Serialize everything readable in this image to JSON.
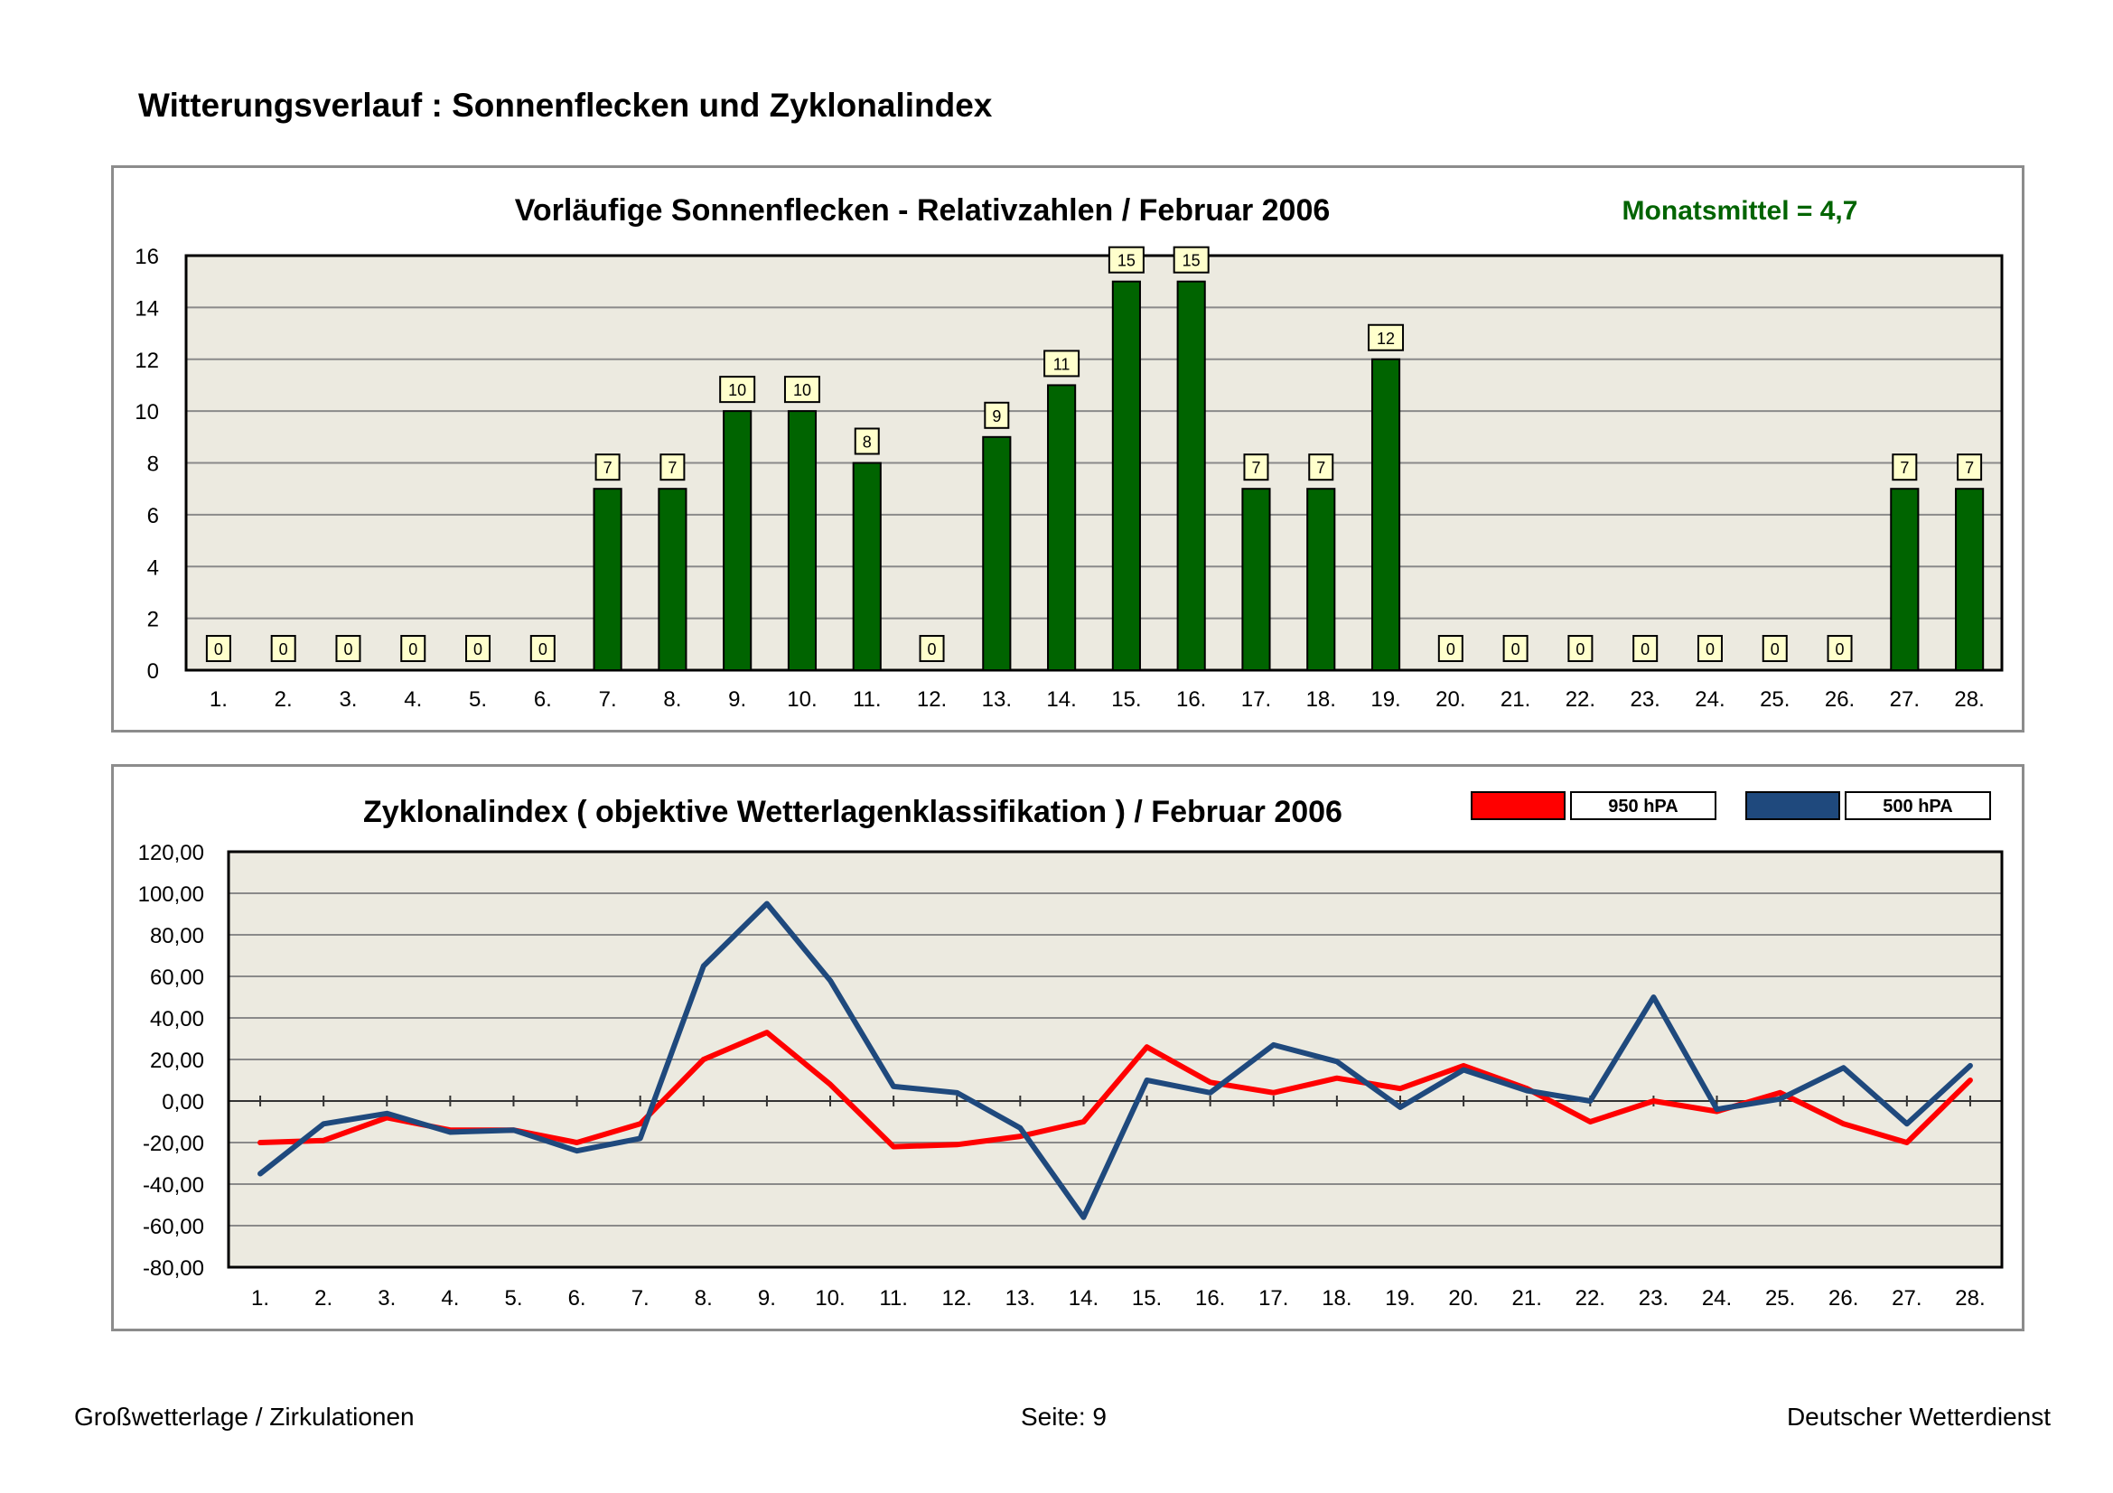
{
  "page": {
    "title": "Witterungsverlauf : Sonnenflecken und Zyklonalindex",
    "footer_left": "Großwetterlage / Zirkulationen",
    "footer_center": "Seite: 9",
    "footer_right": "Deutscher Wetterdienst"
  },
  "colors": {
    "plot_bg": "#eceae0",
    "grid": "#8a8a8a",
    "bar": "#006400",
    "bar_stroke": "#000000",
    "label_bg": "#ffffcc",
    "line_950": "#ff0000",
    "line_500": "#1f497d",
    "mean_text": "#006400"
  },
  "chart_data": [
    {
      "type": "bar",
      "title": "Vorläufige Sonnenflecken - Relativzahlen  /   Februar 2006",
      "annotation": "Monatsmittel = 4,7",
      "categories": [
        "1.",
        "2.",
        "3.",
        "4.",
        "5.",
        "6.",
        "7.",
        "8.",
        "9.",
        "10.",
        "11.",
        "12.",
        "13.",
        "14.",
        "15.",
        "16.",
        "17.",
        "18.",
        "19.",
        "20.",
        "21.",
        "22.",
        "23.",
        "24.",
        "25.",
        "26.",
        "27.",
        "28."
      ],
      "values": [
        0,
        0,
        0,
        0,
        0,
        0,
        7,
        7,
        10,
        10,
        8,
        0,
        9,
        11,
        15,
        15,
        7,
        7,
        12,
        0,
        0,
        0,
        0,
        0,
        0,
        0,
        7,
        7
      ],
      "ylim": [
        0,
        16
      ],
      "yticks": [
        "0",
        "2",
        "4",
        "6",
        "8",
        "10",
        "12",
        "14",
        "16"
      ],
      "grid": true,
      "data_labels": true,
      "xlabel": "",
      "ylabel": ""
    },
    {
      "type": "line",
      "title": "Zyklonalindex  ( objektive Wetterlagenklassifikation )  /  Februar 2006",
      "categories": [
        "1.",
        "2.",
        "3.",
        "4.",
        "5.",
        "6.",
        "7.",
        "8.",
        "9.",
        "10.",
        "11.",
        "12.",
        "13.",
        "14.",
        "15.",
        "16.",
        "17.",
        "18.",
        "19.",
        "20.",
        "21.",
        "22.",
        "23.",
        "24.",
        "25.",
        "26.",
        "27.",
        "28."
      ],
      "series": [
        {
          "name": "950 hPA",
          "color": "#ff0000",
          "values": [
            -20,
            -19,
            -8,
            -14,
            -14,
            -20,
            -11,
            20,
            33,
            8,
            -22,
            -21,
            -17,
            -10,
            26,
            9,
            4,
            11,
            6,
            17,
            6,
            -10,
            0,
            -5,
            4,
            -11,
            -20,
            10
          ]
        },
        {
          "name": "500 hPA",
          "color": "#1f497d",
          "values": [
            -35,
            -11,
            -6,
            -15,
            -14,
            -24,
            -18,
            65,
            95,
            58,
            7,
            4,
            -13,
            -56,
            10,
            4,
            27,
            19,
            -3,
            15,
            5,
            0,
            50,
            -4,
            1,
            16,
            -11,
            17
          ]
        }
      ],
      "ylim": [
        -80,
        120
      ],
      "yticks": [
        "-80,00",
        "-60,00",
        "-40,00",
        "-20,00",
        "0,00",
        "20,00",
        "40,00",
        "60,00",
        "80,00",
        "100,00",
        "120,00"
      ],
      "legend": "top-right",
      "grid": true,
      "xlabel": "",
      "ylabel": ""
    }
  ]
}
